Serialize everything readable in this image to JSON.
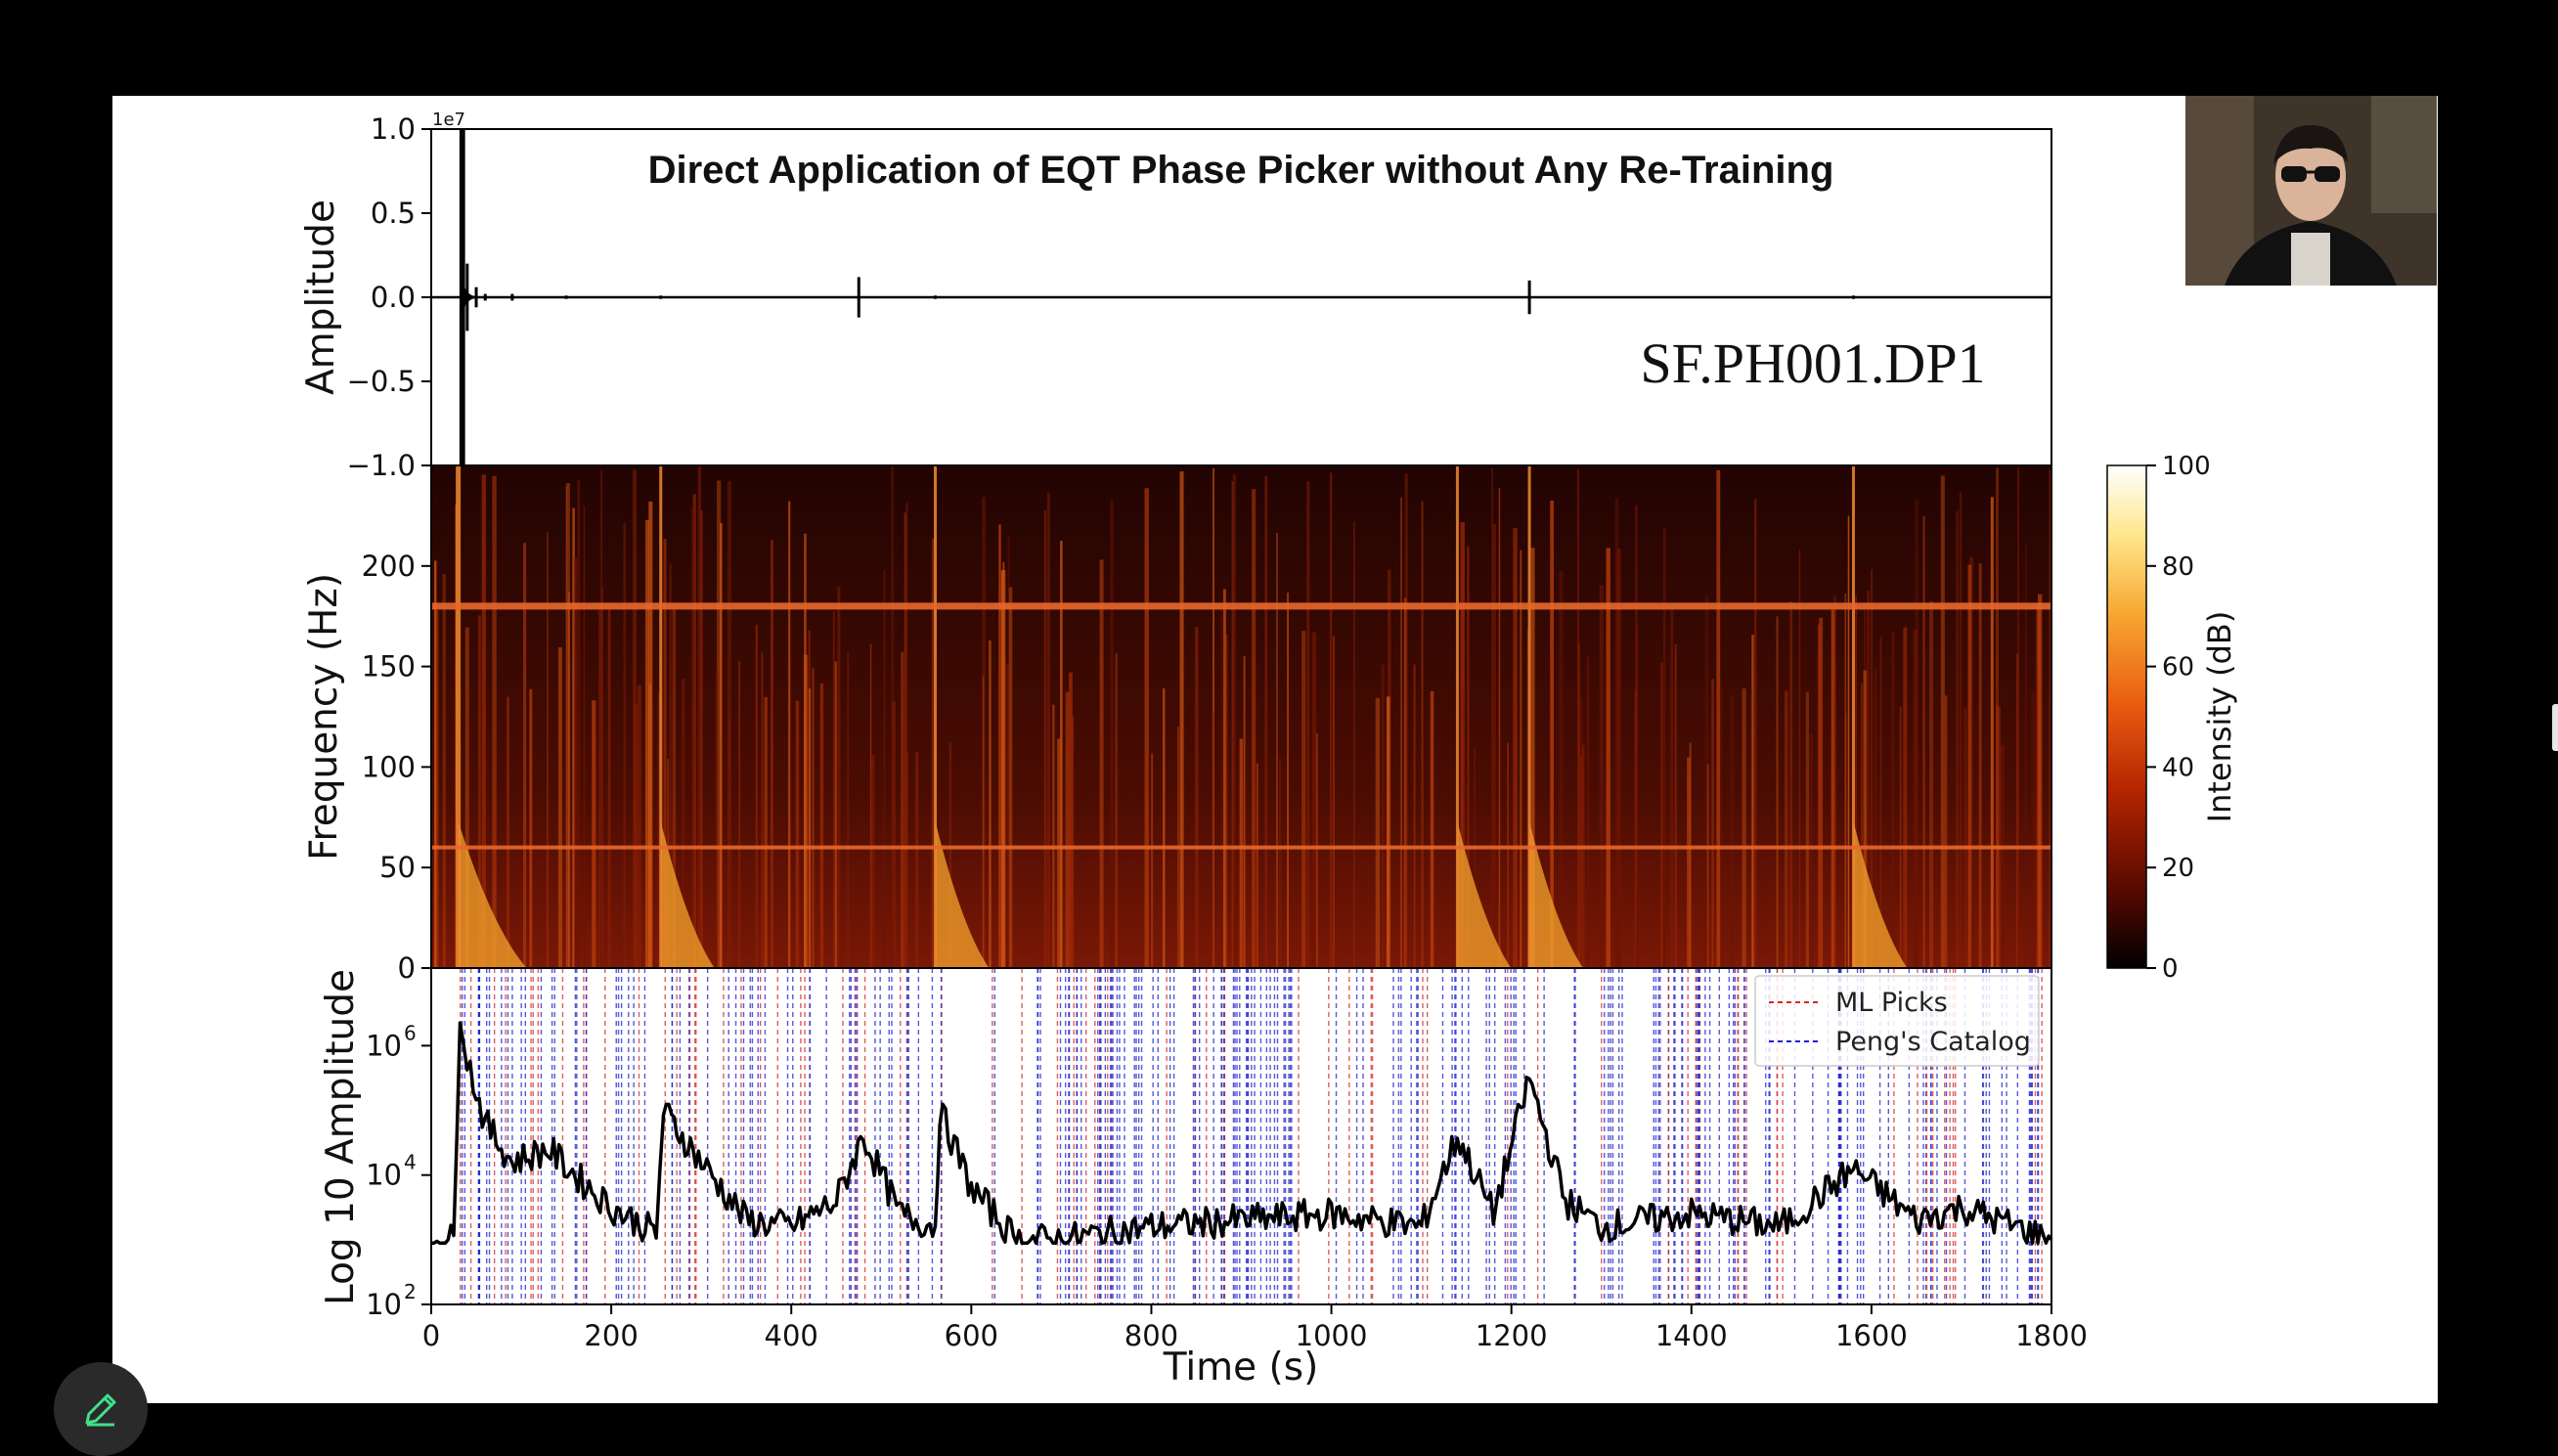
{
  "presentation": {
    "slide_title": "Direct Application of EQT Phase Picker without Any Re-Training",
    "station_label": "SF.PH001.DP1"
  },
  "colors": {
    "background": "#000000",
    "slide": "#ffffff",
    "ml_picks": "#d62728",
    "catalog": "#1f1fd0",
    "waveform": "#000000",
    "colormap": [
      "#000000",
      "#5a0a00",
      "#b32400",
      "#e85a10",
      "#f7a530",
      "#fde68a",
      "#ffffff"
    ]
  },
  "icons": {
    "edit_button": "pencil-icon"
  },
  "chart_data": [
    {
      "type": "line",
      "panel": "waveform",
      "ylabel": "Amplitude",
      "offset_label": "1e7",
      "ylim": [
        -1.0,
        1.0
      ],
      "yticks": [
        1.0,
        0.5,
        0.0,
        -0.5,
        -1.0
      ],
      "ytick_labels": [
        "1.0",
        "0.5",
        "0.0",
        "−0.5",
        "−1.0"
      ],
      "xlim": [
        0,
        1800
      ],
      "series": [
        {
          "x": [
            0,
            30,
            33,
            36,
            40,
            50,
            60,
            90,
            150,
            255,
            475,
            560,
            1220,
            1580,
            1800
          ],
          "y": [
            0,
            0,
            1.0,
            -1.0,
            0.2,
            0.06,
            0.02,
            0.02,
            0.01,
            0.01,
            0.12,
            0.01,
            0.1,
            0.01,
            0
          ]
        }
      ]
    },
    {
      "type": "heatmap",
      "panel": "spectrogram",
      "ylabel": "Frequency (Hz)",
      "ylim": [
        0,
        250
      ],
      "yticks": [
        0,
        50,
        100,
        150,
        200
      ],
      "xlim": [
        0,
        1800
      ],
      "colorbar_label": "Intensity (dB)",
      "colorbar_range": [
        0,
        100
      ],
      "colorbar_ticks": [
        0,
        20,
        40,
        60,
        80,
        100
      ],
      "persistent_lines_hz": [
        60,
        180
      ],
      "event_times_s": [
        30,
        255,
        560,
        1140,
        1220,
        1580
      ]
    },
    {
      "type": "line",
      "panel": "log_amplitude",
      "ylabel": "Log 10 Amplitude",
      "xlabel": "Time (s)",
      "xlim": [
        0,
        1800
      ],
      "xticks": [
        0,
        200,
        400,
        600,
        800,
        1000,
        1200,
        1400,
        1600,
        1800
      ],
      "ylim_log10": [
        2,
        7.2
      ],
      "ytick_labels": [
        [
          "10",
          "2"
        ],
        [
          "10",
          "4"
        ],
        [
          "10",
          "6"
        ]
      ],
      "legend": [
        {
          "label": "ML Picks",
          "style": "red dashed"
        },
        {
          "label": "Peng's Catalog",
          "style": "blue dashed"
        }
      ],
      "legend_position": "top-right",
      "series": [
        {
          "x": [
            0,
            25,
            32,
            40,
            60,
            90,
            130,
            160,
            200,
            250,
            258,
            300,
            350,
            400,
            450,
            480,
            520,
            560,
            565,
            600,
            650,
            700,
            800,
            900,
            1000,
            1100,
            1140,
            1180,
            1220,
            1260,
            1300,
            1400,
            1500,
            1580,
            1650,
            1700,
            1800
          ],
          "y": [
            3.0,
            3.0,
            6.6,
            5.8,
            4.8,
            4.2,
            4.4,
            4.0,
            3.5,
            3.1,
            5.0,
            4.2,
            3.3,
            3.2,
            3.6,
            4.6,
            3.4,
            3.2,
            5.0,
            3.8,
            3.0,
            3.0,
            3.2,
            3.3,
            3.4,
            3.2,
            4.6,
            3.4,
            5.5,
            3.6,
            3.2,
            3.4,
            3.2,
            4.1,
            3.3,
            3.5,
            3.0
          ]
        }
      ]
    }
  ]
}
